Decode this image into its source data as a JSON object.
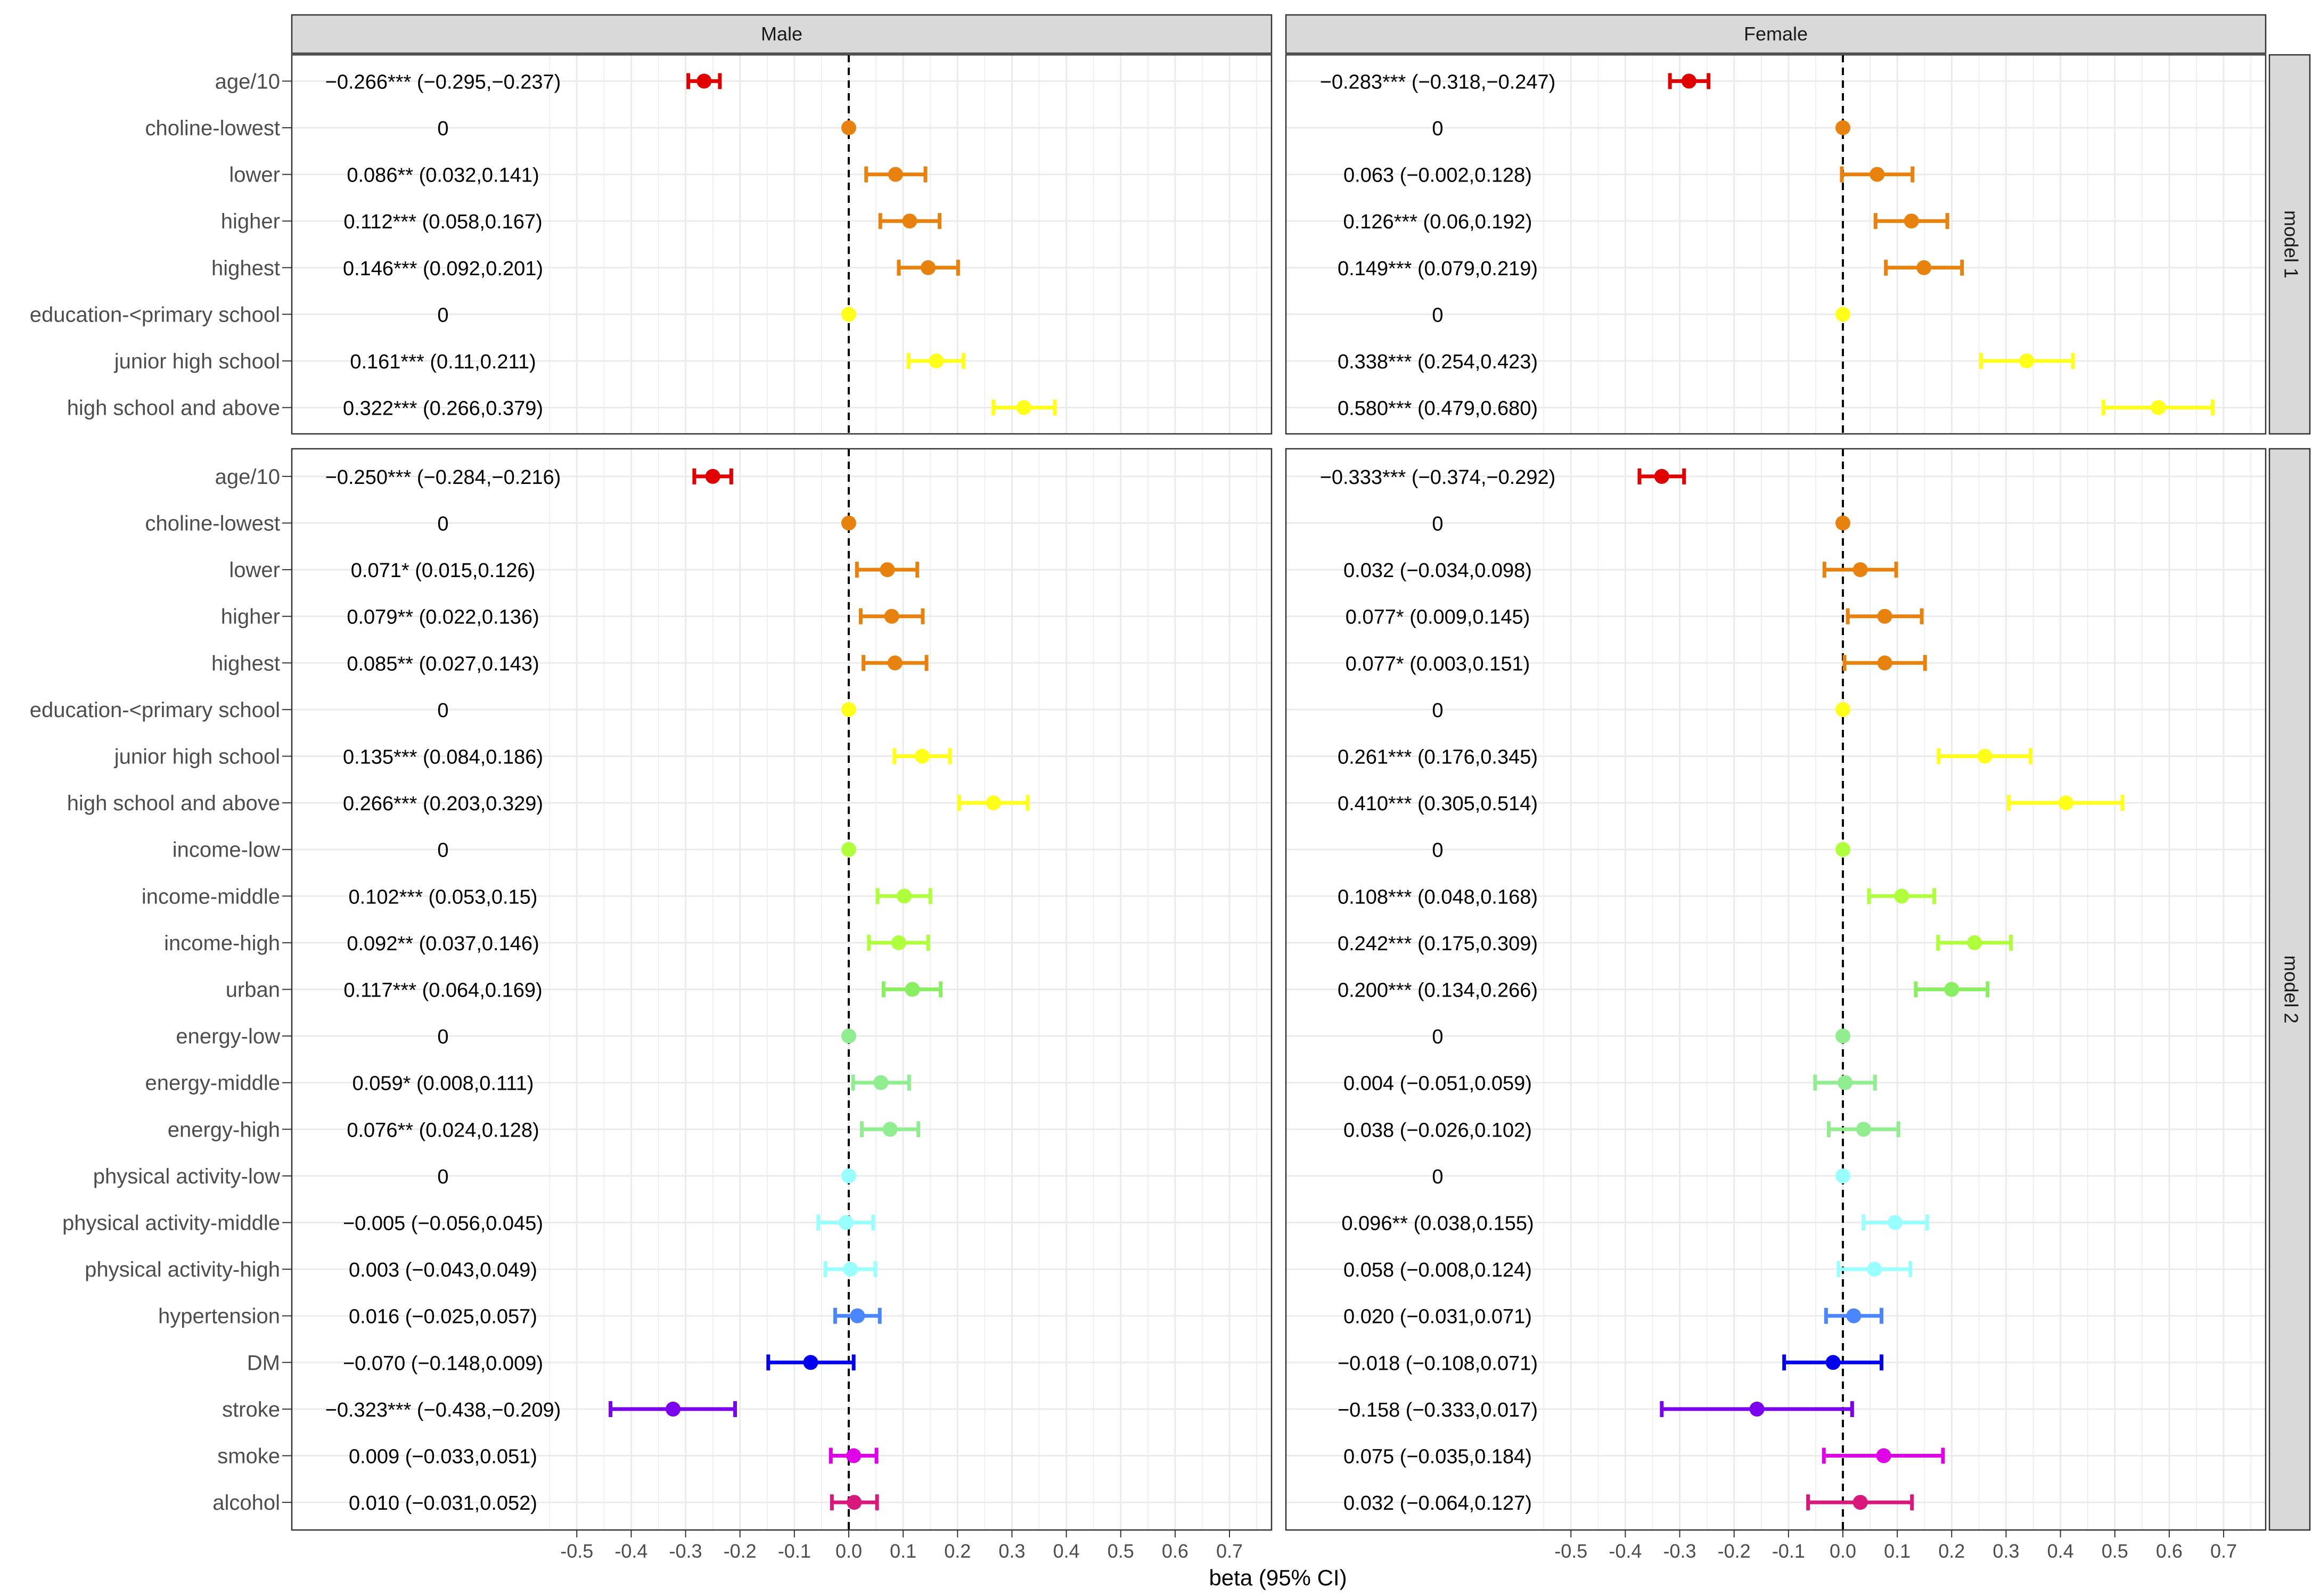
{
  "chart_data": {
    "type": "forest",
    "xlabel": "beta (95% CI)",
    "x_ticks": [
      -0.5,
      -0.4,
      -0.3,
      -0.2,
      -0.1,
      0.0,
      0.1,
      0.2,
      0.3,
      0.4,
      0.5,
      0.6,
      0.7
    ],
    "x_tick_labels": [
      "-0.5",
      "-0.4",
      "-0.3",
      "-0.2",
      "-0.1",
      "0.0",
      "0.1",
      "0.2",
      "0.3",
      "0.4",
      "0.5",
      "0.6",
      "0.7"
    ],
    "xlim": [
      -0.57,
      0.78
    ],
    "reference_line": 0,
    "grid": true,
    "columns": [
      "Male",
      "Female"
    ],
    "rows": [
      "model 1",
      "model 2"
    ],
    "colors": {
      "age": "#e00000",
      "choline": "#e8820e",
      "education": "#ffff19",
      "income": "#b0ff3c",
      "urban": "#88f060",
      "energy": "#90ee90",
      "physical_activity": "#99ffff",
      "hypertension": "#4a86ff",
      "dm": "#0000ee",
      "stroke": "#7a00ee",
      "smoke": "#e000e8",
      "alcohol": "#d8187a",
      "strip_bg": "#d9d9d9",
      "reference": "#000000"
    },
    "panels": [
      {
        "row": "model 1",
        "items": [
          {
            "label": "age/10",
            "color": "age",
            "male": {
              "est": -0.266,
              "lo": -0.295,
              "hi": -0.237,
              "text": "−0.266*** (−0.295,−0.237)"
            },
            "female": {
              "est": -0.283,
              "lo": -0.318,
              "hi": -0.247,
              "text": "−0.283*** (−0.318,−0.247)"
            }
          },
          {
            "label": "choline-lowest",
            "color": "choline",
            "male": {
              "est": 0,
              "lo": 0,
              "hi": 0,
              "text": "0"
            },
            "female": {
              "est": 0,
              "lo": 0,
              "hi": 0,
              "text": "0"
            }
          },
          {
            "label": "lower",
            "color": "choline",
            "male": {
              "est": 0.086,
              "lo": 0.032,
              "hi": 0.141,
              "text": "0.086** (0.032,0.141)"
            },
            "female": {
              "est": 0.063,
              "lo": -0.002,
              "hi": 0.128,
              "text": "0.063 (−0.002,0.128)"
            }
          },
          {
            "label": "higher",
            "color": "choline",
            "male": {
              "est": 0.112,
              "lo": 0.058,
              "hi": 0.167,
              "text": "0.112*** (0.058,0.167)"
            },
            "female": {
              "est": 0.126,
              "lo": 0.06,
              "hi": 0.192,
              "text": "0.126*** (0.06,0.192)"
            }
          },
          {
            "label": "highest",
            "color": "choline",
            "male": {
              "est": 0.146,
              "lo": 0.092,
              "hi": 0.201,
              "text": "0.146*** (0.092,0.201)"
            },
            "female": {
              "est": 0.149,
              "lo": 0.079,
              "hi": 0.219,
              "text": "0.149*** (0.079,0.219)"
            }
          },
          {
            "label": "education-<primary school",
            "color": "education",
            "male": {
              "est": 0,
              "lo": 0,
              "hi": 0,
              "text": "0"
            },
            "female": {
              "est": 0,
              "lo": 0,
              "hi": 0,
              "text": "0"
            }
          },
          {
            "label": "junior high school",
            "color": "education",
            "male": {
              "est": 0.161,
              "lo": 0.11,
              "hi": 0.211,
              "text": "0.161*** (0.11,0.211)"
            },
            "female": {
              "est": 0.338,
              "lo": 0.254,
              "hi": 0.423,
              "text": "0.338*** (0.254,0.423)"
            }
          },
          {
            "label": "high school and above",
            "color": "education",
            "male": {
              "est": 0.322,
              "lo": 0.266,
              "hi": 0.379,
              "text": "0.322*** (0.266,0.379)"
            },
            "female": {
              "est": 0.58,
              "lo": 0.479,
              "hi": 0.68,
              "text": "0.580*** (0.479,0.680)"
            }
          }
        ]
      },
      {
        "row": "model 2",
        "items": [
          {
            "label": "age/10",
            "color": "age",
            "male": {
              "est": -0.25,
              "lo": -0.284,
              "hi": -0.216,
              "text": "−0.250*** (−0.284,−0.216)"
            },
            "female": {
              "est": -0.333,
              "lo": -0.374,
              "hi": -0.292,
              "text": "−0.333*** (−0.374,−0.292)"
            }
          },
          {
            "label": "choline-lowest",
            "color": "choline",
            "male": {
              "est": 0,
              "lo": 0,
              "hi": 0,
              "text": "0"
            },
            "female": {
              "est": 0,
              "lo": 0,
              "hi": 0,
              "text": "0"
            }
          },
          {
            "label": "lower",
            "color": "choline",
            "male": {
              "est": 0.071,
              "lo": 0.015,
              "hi": 0.126,
              "text": "0.071* (0.015,0.126)"
            },
            "female": {
              "est": 0.032,
              "lo": -0.034,
              "hi": 0.098,
              "text": "0.032 (−0.034,0.098)"
            }
          },
          {
            "label": "higher",
            "color": "choline",
            "male": {
              "est": 0.079,
              "lo": 0.022,
              "hi": 0.136,
              "text": "0.079** (0.022,0.136)"
            },
            "female": {
              "est": 0.077,
              "lo": 0.009,
              "hi": 0.145,
              "text": "0.077* (0.009,0.145)"
            }
          },
          {
            "label": "highest",
            "color": "choline",
            "male": {
              "est": 0.085,
              "lo": 0.027,
              "hi": 0.143,
              "text": "0.085** (0.027,0.143)"
            },
            "female": {
              "est": 0.077,
              "lo": 0.003,
              "hi": 0.151,
              "text": "0.077* (0.003,0.151)"
            }
          },
          {
            "label": "education-<primary school",
            "color": "education",
            "male": {
              "est": 0,
              "lo": 0,
              "hi": 0,
              "text": "0"
            },
            "female": {
              "est": 0,
              "lo": 0,
              "hi": 0,
              "text": "0"
            }
          },
          {
            "label": "junior high school",
            "color": "education",
            "male": {
              "est": 0.135,
              "lo": 0.084,
              "hi": 0.186,
              "text": "0.135*** (0.084,0.186)"
            },
            "female": {
              "est": 0.261,
              "lo": 0.176,
              "hi": 0.345,
              "text": "0.261*** (0.176,0.345)"
            }
          },
          {
            "label": "high school and above",
            "color": "education",
            "male": {
              "est": 0.266,
              "lo": 0.203,
              "hi": 0.329,
              "text": "0.266*** (0.203,0.329)"
            },
            "female": {
              "est": 0.41,
              "lo": 0.305,
              "hi": 0.514,
              "text": "0.410*** (0.305,0.514)"
            }
          },
          {
            "label": "income-low",
            "color": "income",
            "male": {
              "est": 0,
              "lo": 0,
              "hi": 0,
              "text": "0"
            },
            "female": {
              "est": 0,
              "lo": 0,
              "hi": 0,
              "text": "0"
            }
          },
          {
            "label": "income-middle",
            "color": "income",
            "male": {
              "est": 0.102,
              "lo": 0.053,
              "hi": 0.15,
              "text": "0.102*** (0.053,0.15)"
            },
            "female": {
              "est": 0.108,
              "lo": 0.048,
              "hi": 0.168,
              "text": "0.108*** (0.048,0.168)"
            }
          },
          {
            "label": "income-high",
            "color": "income",
            "male": {
              "est": 0.092,
              "lo": 0.037,
              "hi": 0.146,
              "text": "0.092** (0.037,0.146)"
            },
            "female": {
              "est": 0.242,
              "lo": 0.175,
              "hi": 0.309,
              "text": "0.242*** (0.175,0.309)"
            }
          },
          {
            "label": "urban",
            "color": "urban",
            "male": {
              "est": 0.117,
              "lo": 0.064,
              "hi": 0.169,
              "text": "0.117*** (0.064,0.169)"
            },
            "female": {
              "est": 0.2,
              "lo": 0.134,
              "hi": 0.266,
              "text": "0.200*** (0.134,0.266)"
            }
          },
          {
            "label": "energy-low",
            "color": "energy",
            "male": {
              "est": 0,
              "lo": 0,
              "hi": 0,
              "text": "0"
            },
            "female": {
              "est": 0,
              "lo": 0,
              "hi": 0,
              "text": "0"
            }
          },
          {
            "label": "energy-middle",
            "color": "energy",
            "male": {
              "est": 0.059,
              "lo": 0.008,
              "hi": 0.111,
              "text": "0.059* (0.008,0.111)"
            },
            "female": {
              "est": 0.004,
              "lo": -0.051,
              "hi": 0.059,
              "text": "0.004 (−0.051,0.059)"
            }
          },
          {
            "label": "energy-high",
            "color": "energy",
            "male": {
              "est": 0.076,
              "lo": 0.024,
              "hi": 0.128,
              "text": "0.076** (0.024,0.128)"
            },
            "female": {
              "est": 0.038,
              "lo": -0.026,
              "hi": 0.102,
              "text": "0.038 (−0.026,0.102)"
            }
          },
          {
            "label": "physical activity-low",
            "color": "physical_activity",
            "male": {
              "est": 0,
              "lo": 0,
              "hi": 0,
              "text": "0"
            },
            "female": {
              "est": 0,
              "lo": 0,
              "hi": 0,
              "text": "0"
            }
          },
          {
            "label": "physical activity-middle",
            "color": "physical_activity",
            "male": {
              "est": -0.005,
              "lo": -0.056,
              "hi": 0.045,
              "text": "−0.005 (−0.056,0.045)"
            },
            "female": {
              "est": 0.096,
              "lo": 0.038,
              "hi": 0.155,
              "text": "0.096** (0.038,0.155)"
            }
          },
          {
            "label": "physical activity-high",
            "color": "physical_activity",
            "male": {
              "est": 0.003,
              "lo": -0.043,
              "hi": 0.049,
              "text": "0.003 (−0.043,0.049)"
            },
            "female": {
              "est": 0.058,
              "lo": -0.008,
              "hi": 0.124,
              "text": "0.058 (−0.008,0.124)"
            }
          },
          {
            "label": "hypertension",
            "color": "hypertension",
            "male": {
              "est": 0.016,
              "lo": -0.025,
              "hi": 0.057,
              "text": "0.016 (−0.025,0.057)"
            },
            "female": {
              "est": 0.02,
              "lo": -0.031,
              "hi": 0.071,
              "text": "0.020 (−0.031,0.071)"
            }
          },
          {
            "label": "DM",
            "color": "dm",
            "male": {
              "est": -0.07,
              "lo": -0.148,
              "hi": 0.009,
              "text": "−0.070 (−0.148,0.009)"
            },
            "female": {
              "est": -0.018,
              "lo": -0.108,
              "hi": 0.071,
              "text": "−0.018 (−0.108,0.071)"
            }
          },
          {
            "label": "stroke",
            "color": "stroke",
            "male": {
              "est": -0.323,
              "lo": -0.438,
              "hi": -0.209,
              "text": "−0.323*** (−0.438,−0.209)"
            },
            "female": {
              "est": -0.158,
              "lo": -0.333,
              "hi": 0.017,
              "text": "−0.158 (−0.333,0.017)"
            }
          },
          {
            "label": "smoke",
            "color": "smoke",
            "male": {
              "est": 0.009,
              "lo": -0.033,
              "hi": 0.051,
              "text": "0.009 (−0.033,0.051)"
            },
            "female": {
              "est": 0.075,
              "lo": -0.035,
              "hi": 0.184,
              "text": "0.075 (−0.035,0.184)"
            }
          },
          {
            "label": "alcohol",
            "color": "alcohol",
            "male": {
              "est": 0.01,
              "lo": -0.031,
              "hi": 0.052,
              "text": "0.010 (−0.031,0.052)"
            },
            "female": {
              "est": 0.032,
              "lo": -0.064,
              "hi": 0.127,
              "text": "0.032 (−0.064,0.127)"
            }
          }
        ]
      }
    ]
  }
}
